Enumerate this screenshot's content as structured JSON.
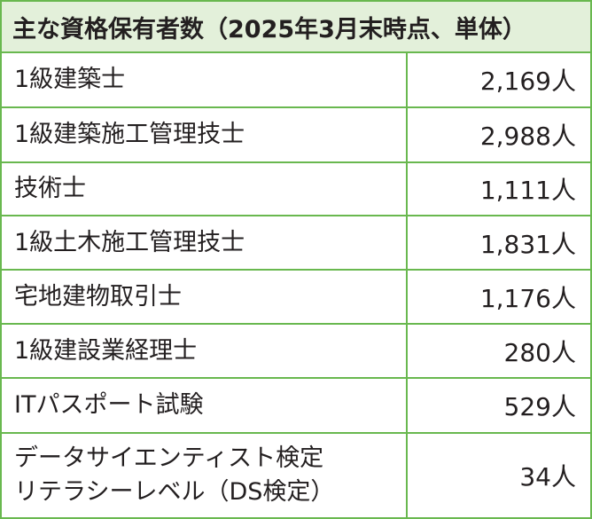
{
  "table": {
    "title": "主な資格保有者数（2025年3月末時点、単体）",
    "rows": [
      [
        "1級建築士",
        "2,169人"
      ],
      [
        "1級建築施工管理技士",
        "2,988人"
      ],
      [
        "技術士",
        "1,111人"
      ],
      [
        "1級土木施工管理技士",
        "1,831人"
      ],
      [
        "宅地建物取引士",
        "1,176人"
      ],
      [
        "1級建設業経理士",
        "280人"
      ],
      [
        "ITパスポート試験",
        "529人"
      ],
      [
        "データサイエンティスト検定\nリテラシーレベル（DS検定）",
        "34人"
      ]
    ]
  }
}
